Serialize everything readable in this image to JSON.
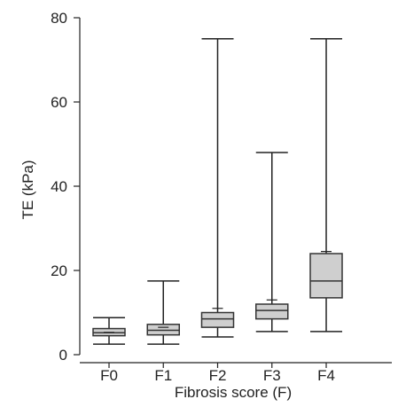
{
  "chart_data": {
    "type": "box",
    "xlabel": "Fibrosis score (F)",
    "ylabel": "TE (kPa)",
    "ylim": [
      0,
      80
    ],
    "yticks": [
      0,
      20,
      40,
      60,
      80
    ],
    "categories": [
      "F0",
      "F1",
      "F2",
      "F3",
      "F4"
    ],
    "boxes": [
      {
        "category": "F0",
        "min": 2.5,
        "q1": 4.5,
        "median": 5.2,
        "q3": 6.2,
        "max": 8.8,
        "mean": 5.3
      },
      {
        "category": "F1",
        "min": 2.5,
        "q1": 4.7,
        "median": 5.8,
        "q3": 7.2,
        "max": 17.5,
        "mean": 6.5
      },
      {
        "category": "F2",
        "min": 4.2,
        "q1": 6.5,
        "median": 8.5,
        "q3": 10.0,
        "max": 75.0,
        "mean": 11.0
      },
      {
        "category": "F3",
        "min": 5.5,
        "q1": 8.5,
        "median": 10.5,
        "q3": 12.0,
        "max": 48.0,
        "mean": 13.0
      },
      {
        "category": "F4",
        "min": 5.5,
        "q1": 13.5,
        "median": 17.5,
        "q3": 24.0,
        "max": 75.0,
        "mean": 24.5
      }
    ],
    "box_fill": "#cfcfcf",
    "grid": false,
    "legend": "none"
  }
}
